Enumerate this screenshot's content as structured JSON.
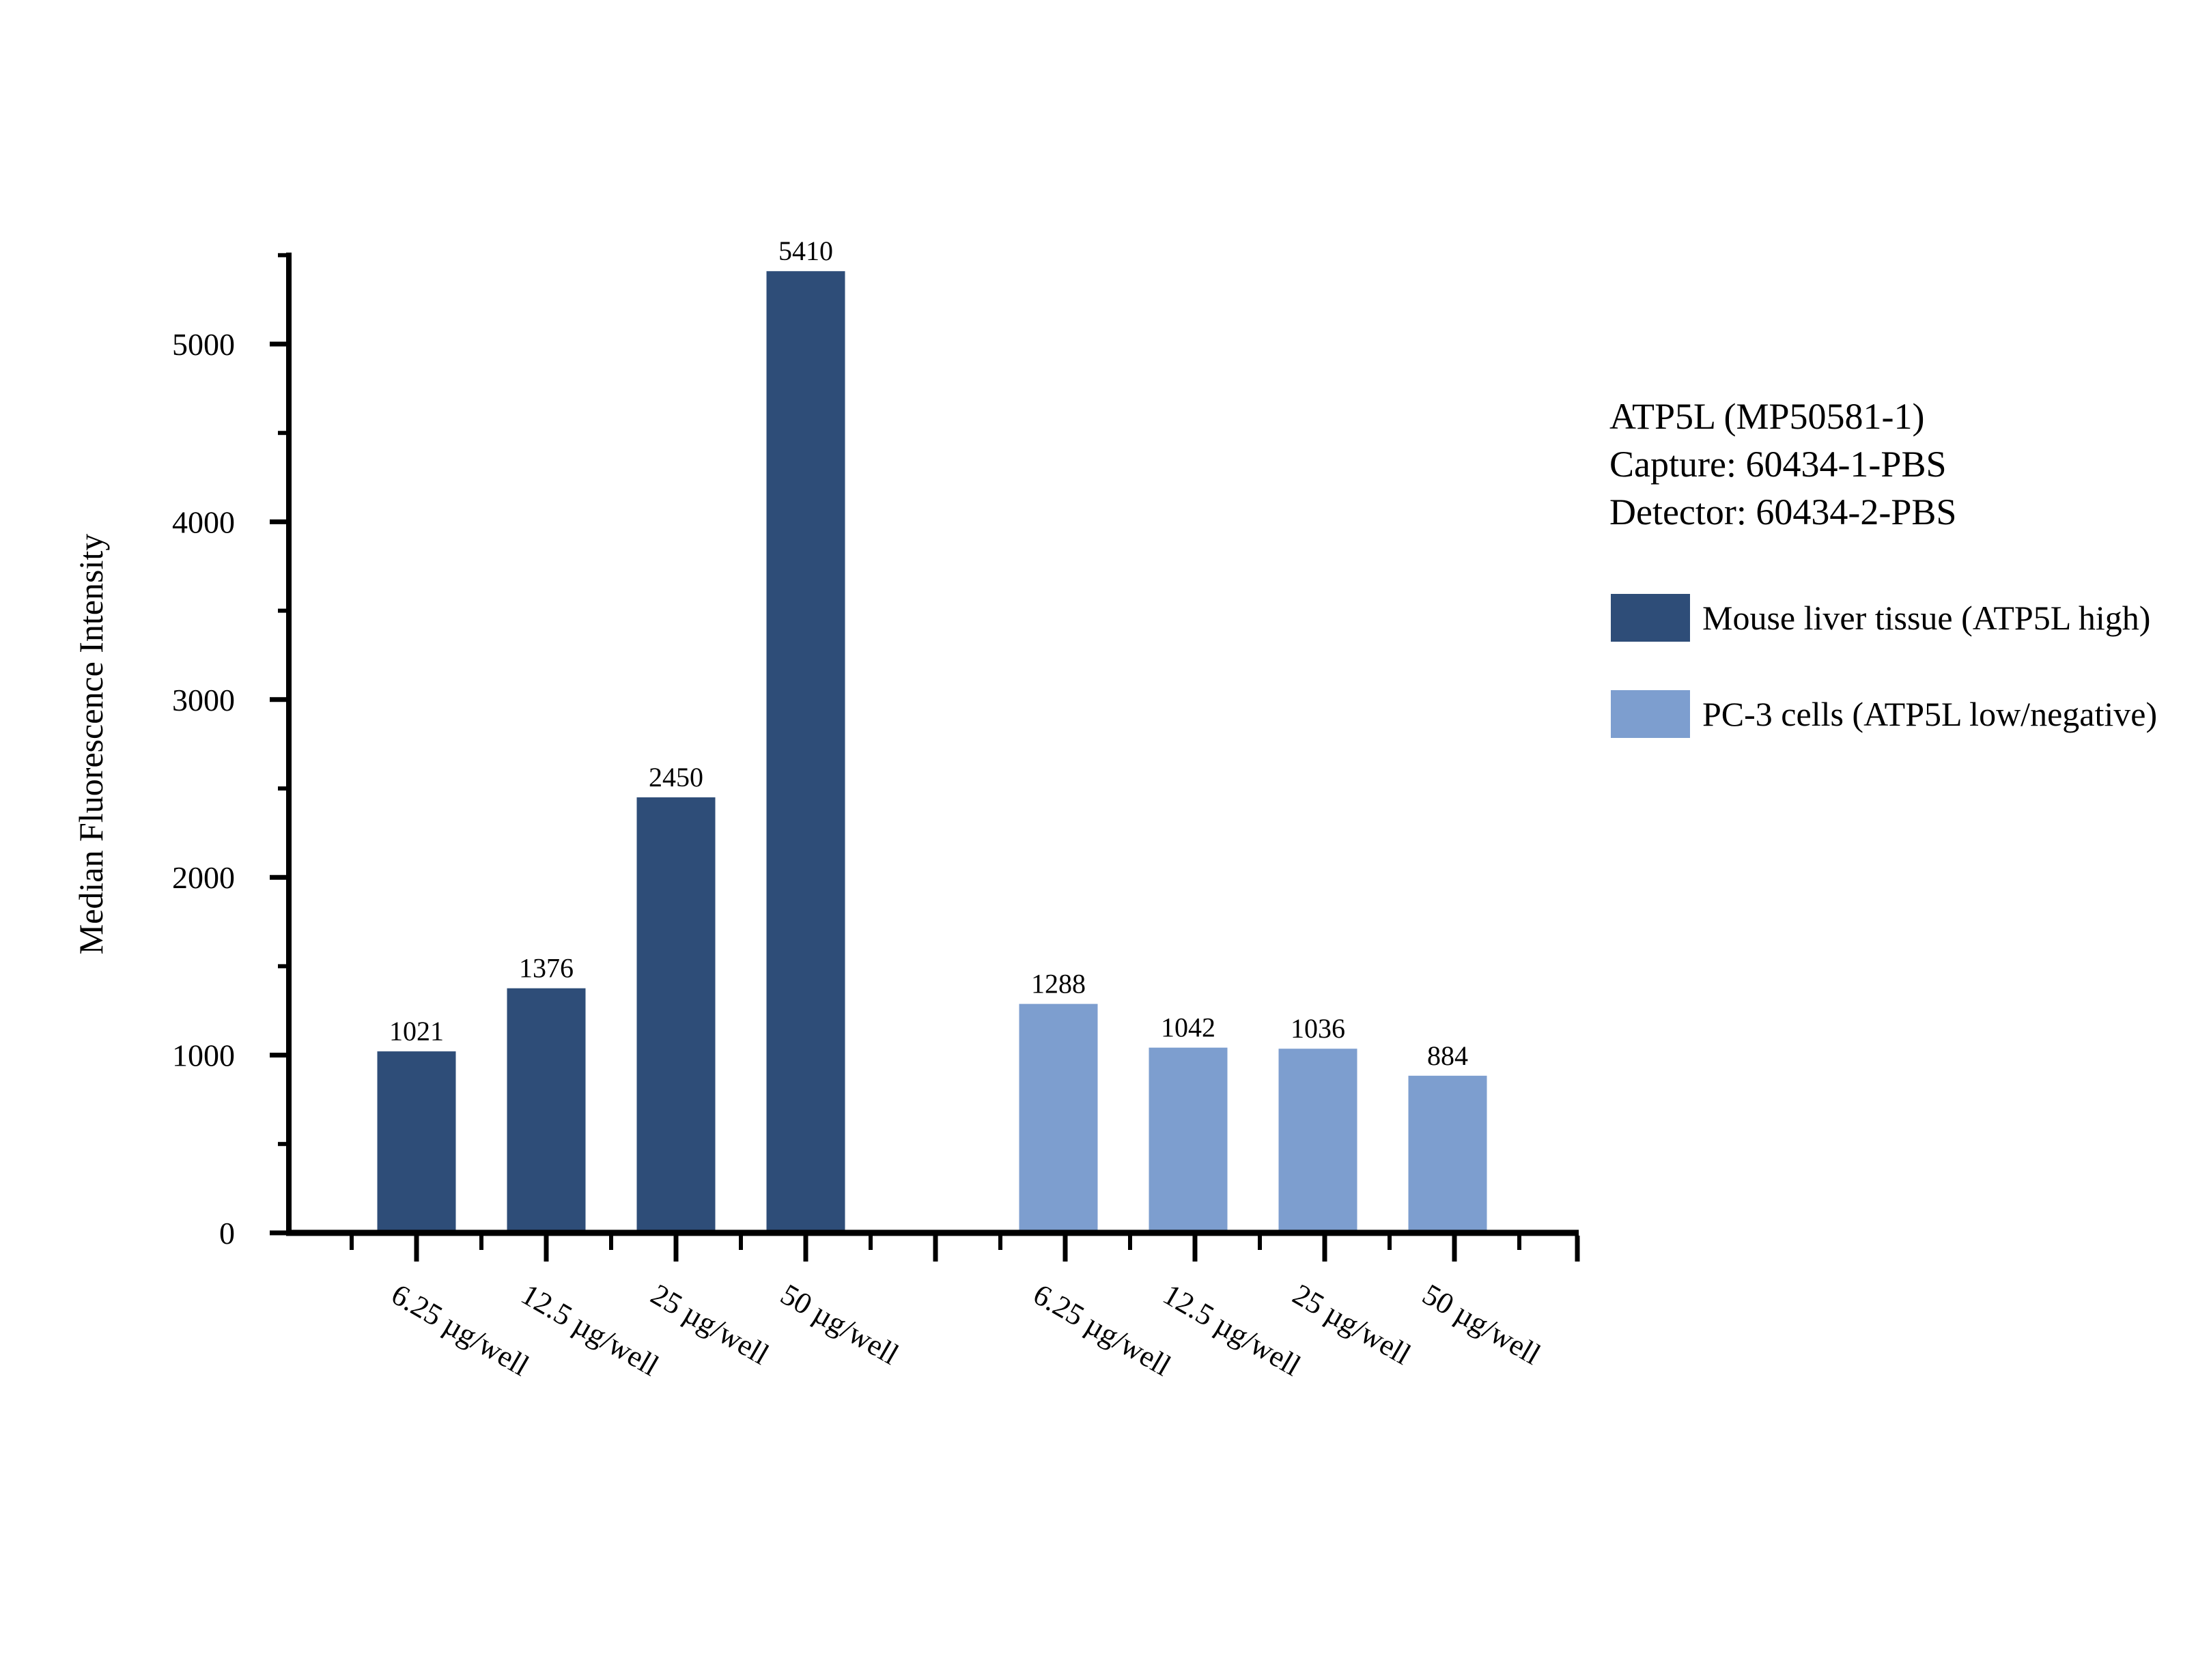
{
  "figure": {
    "background": "#ffffff"
  },
  "annotation": {
    "lines": [
      "ATP5L (MP50581-1)",
      "Capture: 60434-1-PBS",
      "Detector: 60434-2-PBS"
    ]
  },
  "chart_data": {
    "type": "bar",
    "title": "",
    "xlabel": "",
    "ylabel": "Median Fluorescence Intensity",
    "ylim": [
      0,
      5500
    ],
    "y_major_ticks": [
      0,
      1000,
      2000,
      3000,
      4000,
      5000
    ],
    "y_minor_ticks": [
      500,
      1500,
      2500,
      3500,
      4500,
      5500
    ],
    "grid": false,
    "legend_position": "right",
    "bar_value_labels": true,
    "categories": [
      "6.25 µg/well",
      "12.5 µg/well",
      "25 µg/well",
      "50 µg/well"
    ],
    "series": [
      {
        "name": "Mouse liver tissue (ATP5L high)",
        "color": "#2E4D78",
        "values": [
          1021,
          1376,
          2450,
          5410
        ]
      },
      {
        "name": "PC-3 cells (ATP5L low/negative)",
        "color": "#7D9ECF",
        "values": [
          1288,
          1042,
          1036,
          884
        ]
      }
    ]
  }
}
